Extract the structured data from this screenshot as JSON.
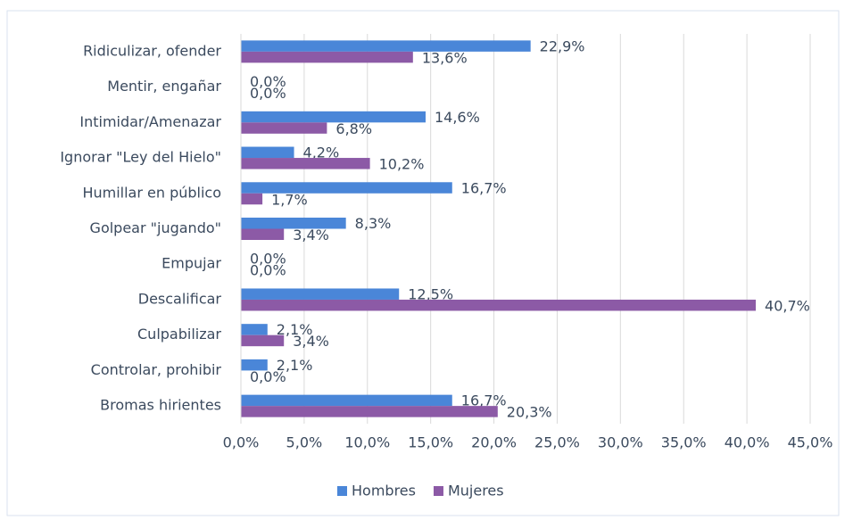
{
  "chart_data": {
    "type": "bar",
    "orientation": "horizontal",
    "categories": [
      "Ridiculizar, ofender",
      "Mentir, engañar",
      "Intimidar/Amenazar",
      "Ignorar \"Ley del Hielo\"",
      "Humillar en público",
      "Golpear \"jugando\"",
      "Empujar",
      "Descalificar",
      "Culpabilizar",
      "Controlar, prohibir",
      "Bromas hirientes"
    ],
    "series": [
      {
        "name": "Hombres",
        "color": "#4a86d8",
        "values": [
          22.9,
          0,
          14.6,
          4.2,
          16.7,
          8.3,
          0,
          12.5,
          2.1,
          2.1,
          16.7
        ],
        "value_labels": [
          "22,9%",
          "0,0%",
          "14,6%",
          "4,2%",
          "16,7%",
          "8,3%",
          "0,0%",
          "12,5%",
          "2,1%",
          "2,1%",
          "16,7%"
        ]
      },
      {
        "name": "Mujeres",
        "color": "#8c5aa6",
        "values": [
          13.6,
          0,
          6.8,
          10.2,
          1.7,
          3.4,
          0,
          40.7,
          3.4,
          0,
          20.3
        ],
        "value_labels": [
          "13,6%",
          "0,0%",
          "6,8%",
          "10,2%",
          "1,7%",
          "3,4%",
          "0,0%",
          "40,7%",
          "3,4%",
          "0,0%",
          "20,3%"
        ]
      }
    ],
    "xlim": [
      0,
      45
    ],
    "xticks": [
      {
        "value": 0,
        "label": "0,0%"
      },
      {
        "value": 5,
        "label": "5,0%"
      },
      {
        "value": 10,
        "label": "10,0%"
      },
      {
        "value": 15,
        "label": "15,0%"
      },
      {
        "value": 20,
        "label": "20,0%"
      },
      {
        "value": 25,
        "label": "25,0%"
      },
      {
        "value": 30,
        "label": "30,0%"
      },
      {
        "value": 35,
        "label": "35,0%"
      },
      {
        "value": 40,
        "label": "40,0%"
      },
      {
        "value": 45,
        "label": "45,0%"
      }
    ],
    "grid": true,
    "legend": "bottom"
  }
}
